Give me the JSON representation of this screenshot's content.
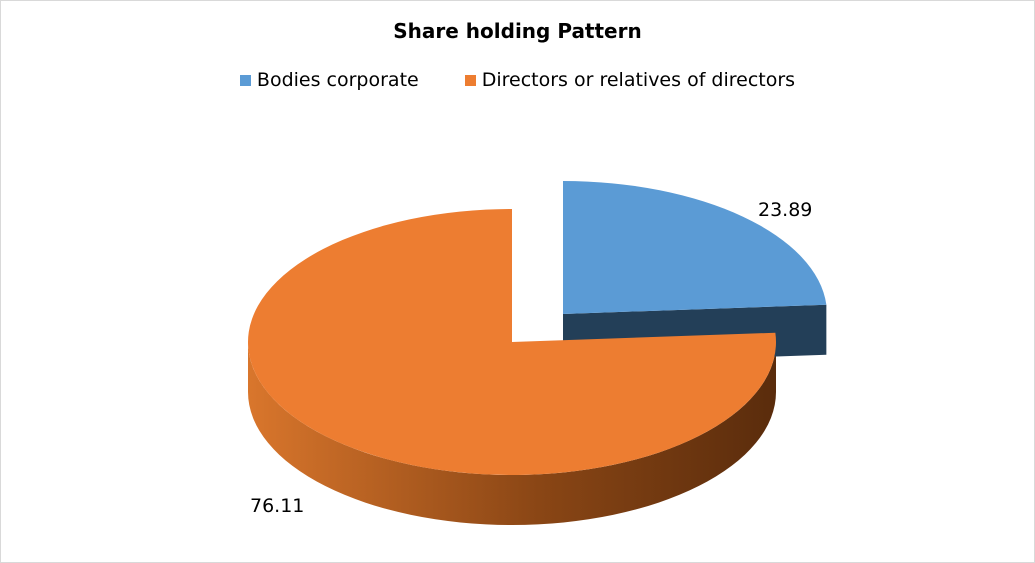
{
  "chart_data": {
    "type": "pie",
    "title": "Share holding Pattern",
    "categories": [
      "Bodies corporate",
      "Directors or relatives of directors"
    ],
    "values": [
      23.89,
      76.11
    ],
    "data_labels": [
      "23.89",
      "76.11"
    ],
    "colors": [
      "#5b9bd5",
      "#ed7d31"
    ],
    "side_colors": [
      "#233f58",
      "#6e3510"
    ],
    "legend_position": "top",
    "exploded_slice": "Bodies corporate",
    "style": "3d"
  }
}
